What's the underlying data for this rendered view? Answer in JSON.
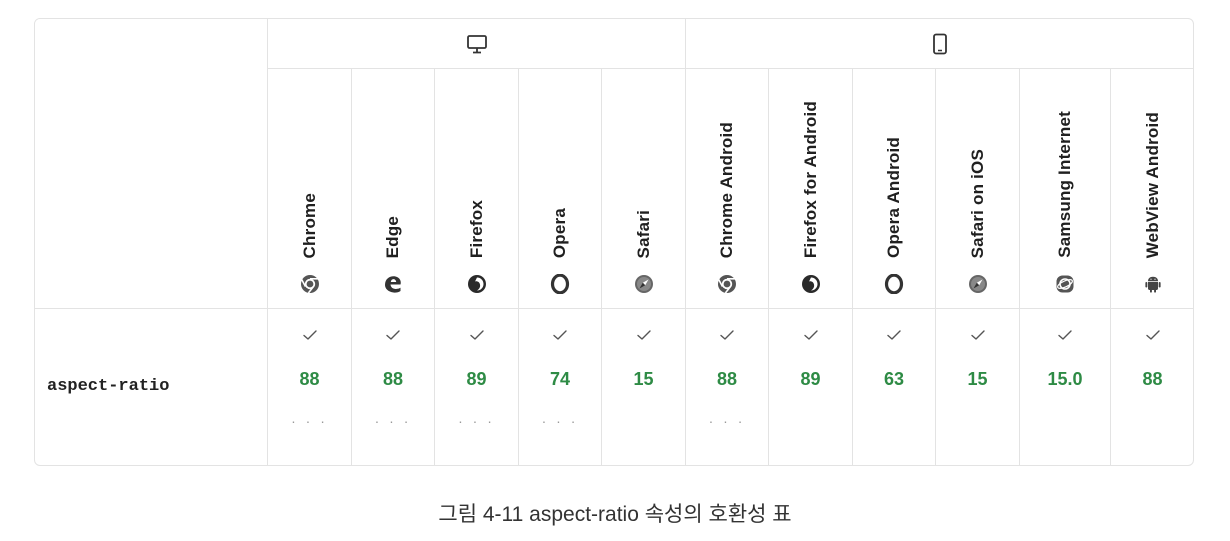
{
  "platforms": [
    {
      "name": "desktop",
      "icon": "desktop-icon"
    },
    {
      "name": "mobile",
      "icon": "mobile-icon"
    }
  ],
  "feature": "aspect-ratio",
  "browsers": [
    {
      "name": "Chrome",
      "icon": "chrome-icon",
      "version": "88",
      "has_dots": true
    },
    {
      "name": "Edge",
      "icon": "edge-icon",
      "version": "88",
      "has_dots": true
    },
    {
      "name": "Firefox",
      "icon": "firefox-icon",
      "version": "89",
      "has_dots": true
    },
    {
      "name": "Opera",
      "icon": "opera-icon",
      "version": "74",
      "has_dots": true
    },
    {
      "name": "Safari",
      "icon": "safari-icon",
      "version": "15",
      "has_dots": false
    },
    {
      "name": "Chrome Android",
      "icon": "chrome-icon",
      "version": "88",
      "has_dots": true
    },
    {
      "name": "Firefox for Android",
      "icon": "firefox-icon",
      "version": "89",
      "has_dots": false
    },
    {
      "name": "Opera Android",
      "icon": "opera-icon",
      "version": "63",
      "has_dots": false
    },
    {
      "name": "Safari on iOS",
      "icon": "safari-icon",
      "version": "15",
      "has_dots": false
    },
    {
      "name": "Samsung Internet",
      "icon": "samsung-internet-icon",
      "version": "15.0",
      "has_dots": false
    },
    {
      "name": "WebView Android",
      "icon": "android-icon",
      "version": "88",
      "has_dots": false
    }
  ],
  "dots_text": "· · ·",
  "caption": "그림 4-11 aspect-ratio 속성의 호환성 표",
  "colors": {
    "version": "#2e8b45",
    "border": "#e3e3e3",
    "check": "#555555"
  }
}
